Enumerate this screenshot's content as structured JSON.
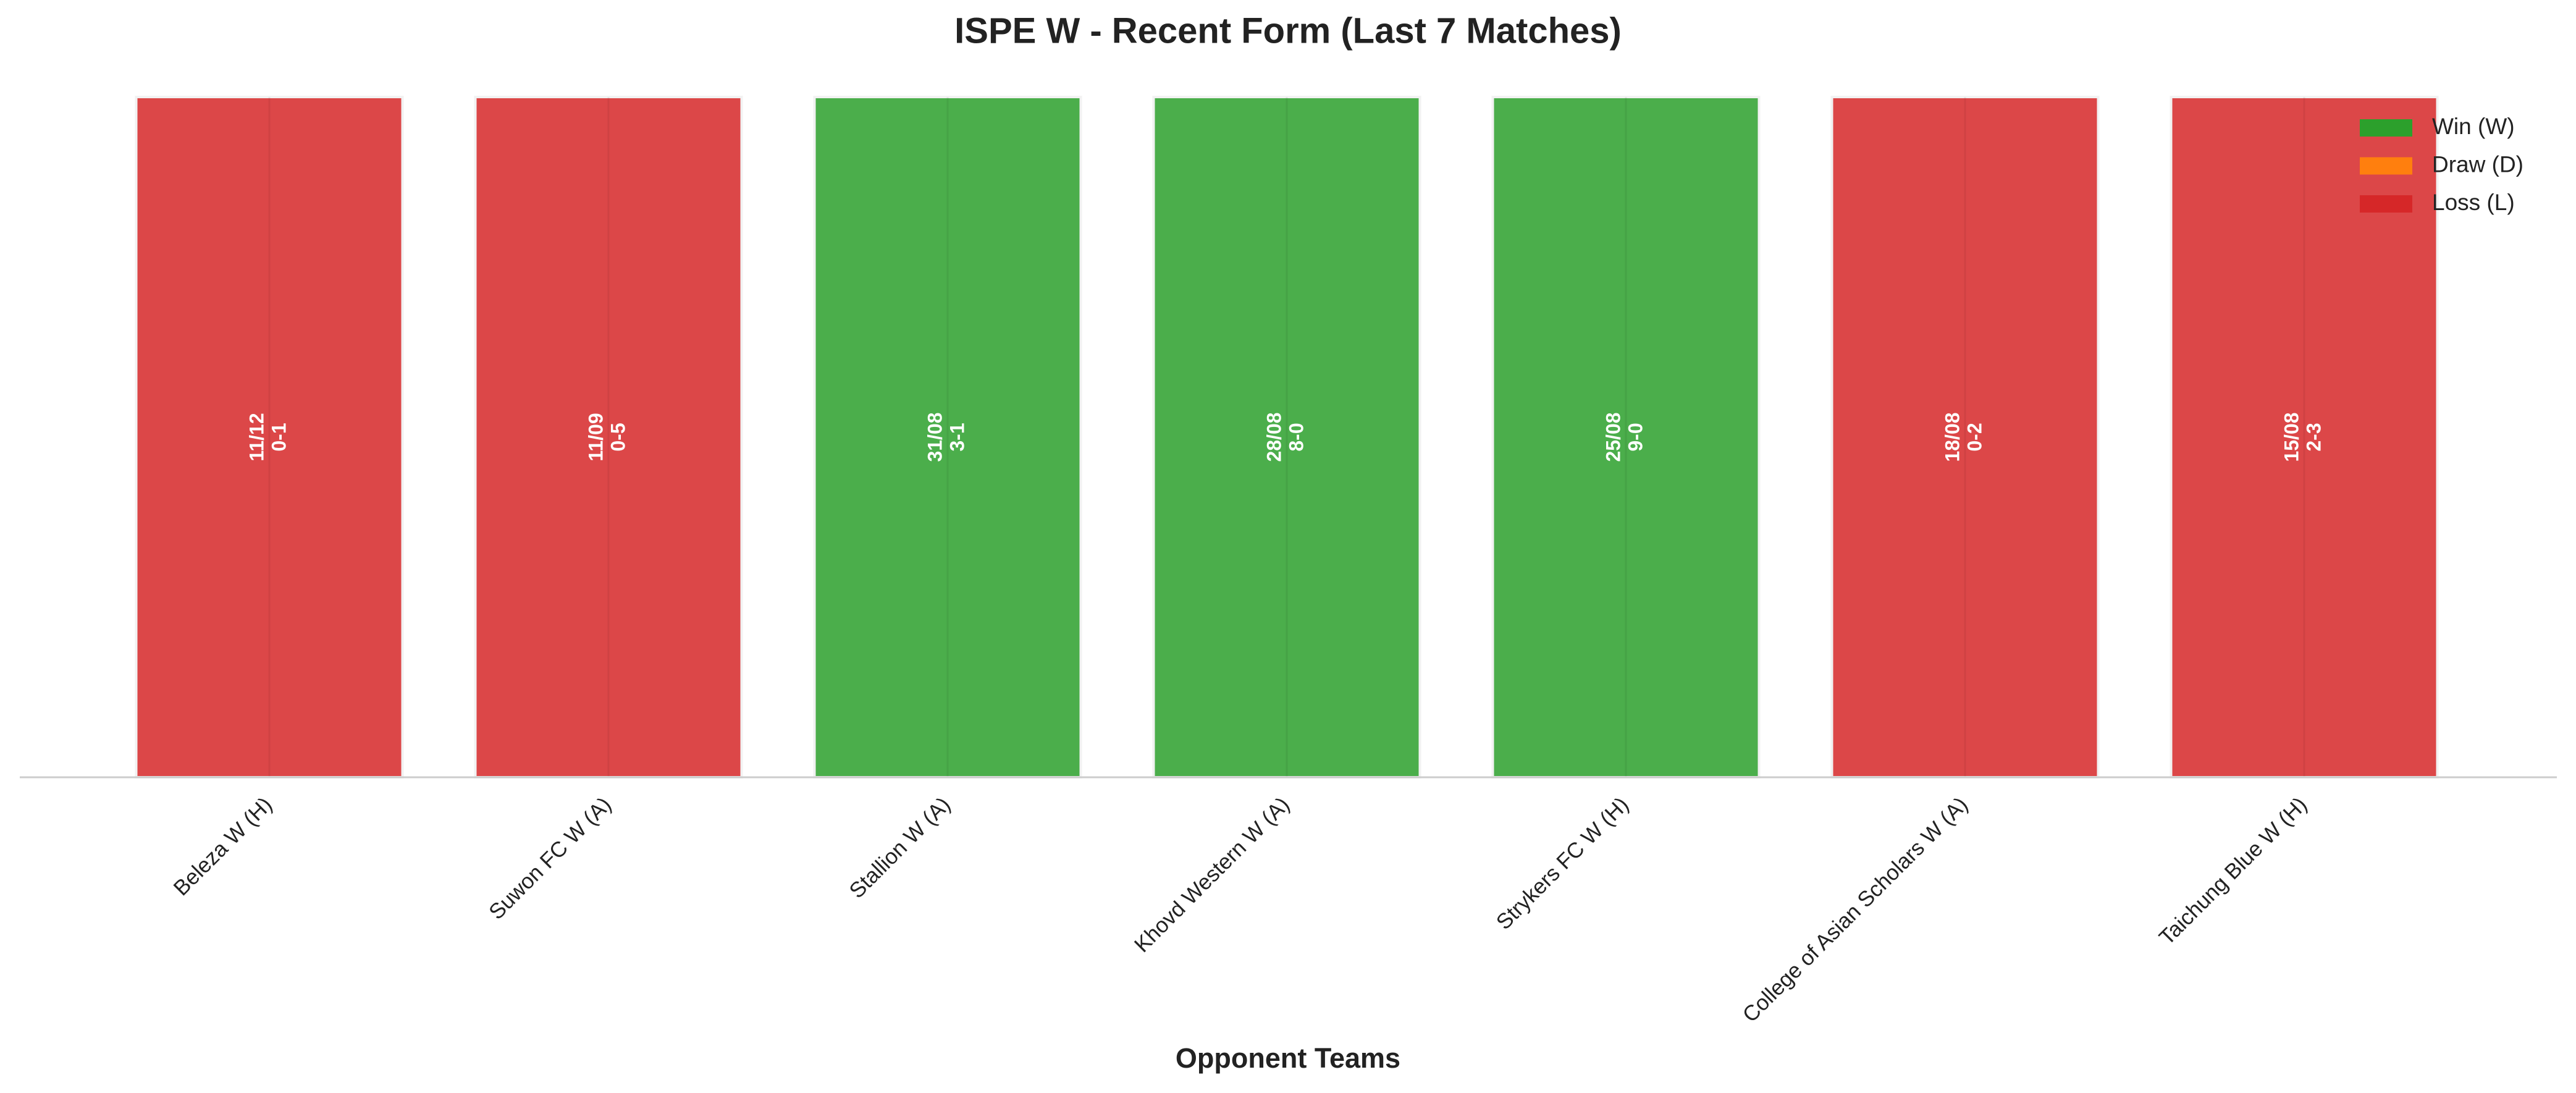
{
  "chart_data": {
    "type": "bar",
    "title": "ISPE W - Recent Form (Last 7 Matches)",
    "x_label": "Opponent Teams",
    "categories": [
      "Beleza W (H)",
      "Suwon FC W (A)",
      "Stallion W (A)",
      "Khovd Western W (A)",
      "Strykers FC W (H)",
      "College of Asian Scholars W (A)",
      "Taichung Blue W (H)"
    ],
    "values": [
      1,
      1,
      1,
      1,
      1,
      1,
      1
    ],
    "dates": [
      "11/12",
      "11/09",
      "31/08",
      "28/08",
      "25/08",
      "18/08",
      "15/08"
    ],
    "scores": [
      "0-1",
      "0-5",
      "3-1",
      "8-0",
      "9-0",
      "0-2",
      "2-3"
    ],
    "colors": [
      "#d62728",
      "#d62728",
      "#2ca02c",
      "#2ca02c",
      "#2ca02c",
      "#d62728",
      "#d62728"
    ],
    "ylim": [
      0,
      1
    ],
    "legend": [
      {
        "name": "Win (W)",
        "color": "#2ca02c"
      },
      {
        "name": "Draw (D)",
        "color": "#ff7f0e"
      },
      {
        "name": "Loss (L)",
        "color": "#d62728"
      }
    ],
    "legend_loc": "upper right"
  }
}
